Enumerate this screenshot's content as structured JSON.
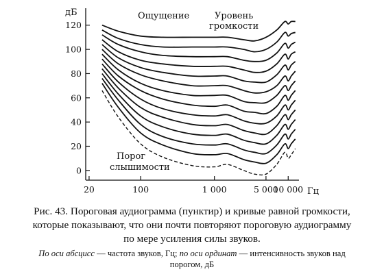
{
  "chart_data": {
    "type": "line",
    "ylabel": "дБ",
    "xlabel": "Гц",
    "x_scale": "log",
    "xlim": [
      18,
      14000
    ],
    "ylim": [
      -8,
      134
    ],
    "x_ticks": [
      20,
      100,
      1000,
      5000,
      10000
    ],
    "x_tick_labels": [
      "20",
      "100",
      "1 000",
      "5 000",
      "10 000"
    ],
    "y_ticks": [
      0,
      20,
      40,
      60,
      80,
      100,
      120
    ],
    "y_tick_labels": [
      "0",
      "20",
      "40",
      "60",
      "80",
      "100",
      "120"
    ],
    "x": [
      30,
      50,
      100,
      200,
      500,
      1000,
      1500,
      2500,
      3500,
      5000,
      7000,
      9000,
      10000,
      11000,
      12500
    ],
    "series": [
      {
        "values": [
          66,
          44,
          22,
          11,
          4,
          3,
          5,
          0,
          -3,
          -3,
          5,
          15,
          10,
          13,
          18
        ],
        "dashed": true
      },
      {
        "values": [
          72,
          52,
          31,
          21,
          14,
          13,
          14,
          9,
          7,
          6,
          13,
          22,
          18,
          22,
          26
        ]
      },
      {
        "values": [
          76,
          58,
          38,
          28,
          22,
          21,
          22,
          17,
          15,
          14,
          21,
          30,
          26,
          30,
          34
        ]
      },
      {
        "values": [
          80,
          63,
          45,
          36,
          30,
          29,
          30,
          25,
          23,
          22,
          29,
          38,
          34,
          38,
          42
        ]
      },
      {
        "values": [
          84,
          68,
          52,
          44,
          38,
          37,
          38,
          33,
          31,
          30,
          37,
          46,
          42,
          46,
          50
        ]
      },
      {
        "values": [
          88,
          73,
          59,
          51,
          46,
          45,
          46,
          41,
          39,
          39,
          45,
          54,
          50,
          54,
          58
        ]
      },
      {
        "values": [
          92,
          78,
          66,
          59,
          54,
          53,
          54,
          49,
          48,
          47,
          53,
          62,
          58,
          62,
          66
        ]
      },
      {
        "values": [
          96,
          83,
          72,
          66,
          62,
          62,
          62,
          57,
          56,
          56,
          62,
          70,
          66,
          70,
          74
        ]
      },
      {
        "values": [
          100,
          88,
          79,
          74,
          70,
          70,
          70,
          66,
          64,
          65,
          70,
          78,
          74,
          78,
          82
        ]
      },
      {
        "values": [
          104,
          93,
          85,
          81,
          78,
          78,
          78,
          74,
          73,
          73,
          79,
          87,
          83,
          87,
          90
        ]
      },
      {
        "values": [
          108,
          98,
          91,
          88,
          86,
          86,
          86,
          83,
          81,
          82,
          88,
          96,
          92,
          96,
          98
        ]
      },
      {
        "values": [
          112,
          104,
          98,
          95,
          94,
          94,
          94,
          91,
          90,
          91,
          97,
          105,
          101,
          104,
          106
        ]
      },
      {
        "values": [
          116,
          109,
          104,
          102,
          102,
          102,
          102,
          100,
          98,
          100,
          106,
          114,
          111,
          113,
          114
        ]
      },
      {
        "values": [
          120,
          115,
          111,
          110,
          110,
          110,
          110,
          108,
          107,
          110,
          116,
          123,
          121,
          123,
          123
        ]
      }
    ],
    "annotations": {
      "sensation": "Ощущение",
      "loudness_line1": "Уровень",
      "loudness_line2": "громкости",
      "threshold_line1": "Порог",
      "threshold_line2": "слышимости"
    }
  },
  "caption": {
    "main_line1": "Рис. 43. Пороговая аудиограмма (пунктир) и кривые равной громкости,",
    "main_line2": "которые показывают, что они почти повторяют пороговую аудиограмму",
    "main_line3": "по мере усиления силы звуков.",
    "note_italic1": "По оси абсцисс",
    "note_text1": " — частота звуков, Гц; ",
    "note_italic2": "по оси ординат",
    "note_text2": " — интенсивность звуков над",
    "note_line2": "порогом, дБ"
  }
}
